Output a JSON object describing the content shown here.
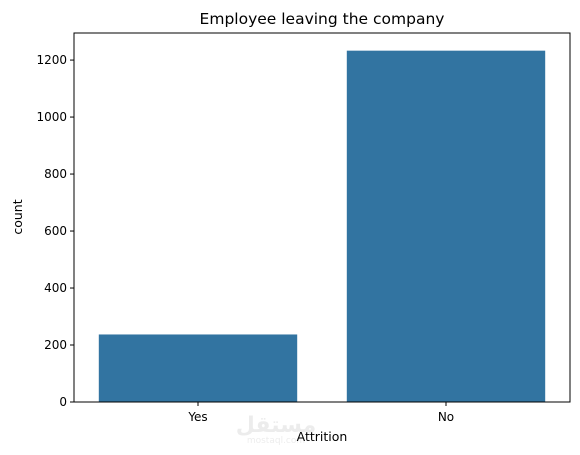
{
  "chart_data": {
    "type": "bar",
    "title": "Employee leaving the company",
    "xlabel": "Attrition",
    "ylabel": "count",
    "categories": [
      "Yes",
      "No"
    ],
    "values": [
      237,
      1233
    ],
    "ylim": [
      0,
      1295
    ],
    "yticks": [
      "0",
      "200",
      "400",
      "600",
      "800",
      "1000",
      "1200"
    ],
    "bar_color": "#3274a1",
    "grid": false,
    "legend": false
  },
  "watermark": {
    "logo_text": "مستقل",
    "sub_text": "mostaql.com"
  }
}
